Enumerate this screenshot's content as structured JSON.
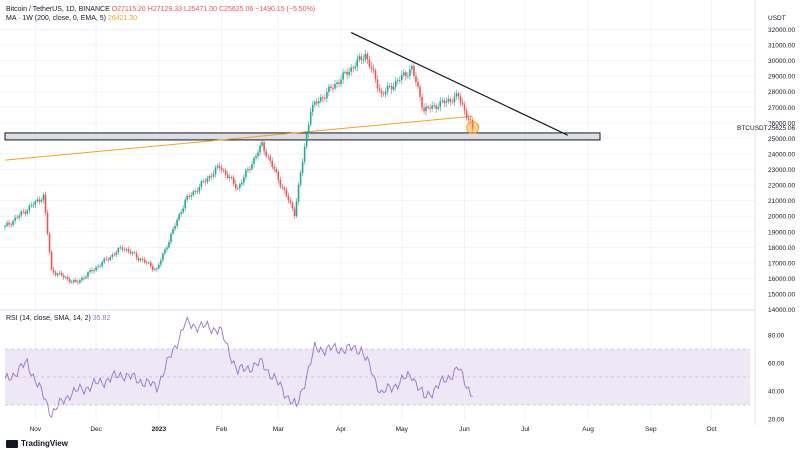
{
  "legend": {
    "symbol": "Bitcoin / TetherUS, 1D, BINANCE",
    "ohlc": "O27115.20  H27129.33  L25471.00  C25625.06  −1490.15 (−5.50%)",
    "ma_title": "MA · 1W (200, close, 0, EMA, 5)",
    "ma_value": "26421.30",
    "rsi_title": "RSI (14, close, SMA, 14, 2)",
    "rsi_value": "35.82"
  },
  "axis": {
    "currency": "USDT",
    "price_ticks": [
      "32000.00",
      "31000.00",
      "30000.00",
      "29000.00",
      "28000.00",
      "27000.00",
      "26000.00",
      "25000.00",
      "24000.00",
      "23000.00",
      "22000.00",
      "21000.00",
      "20000.00",
      "19000.00",
      "18000.00",
      "17000.00",
      "16000.00",
      "15000.00",
      "14000.00"
    ],
    "rsi_ticks": [
      "80.00",
      "60.00",
      "40.00",
      "20.00"
    ],
    "time_ticks": [
      "Nov",
      "Dec",
      "2023",
      "Feb",
      "Mar",
      "Apr",
      "May",
      "Jun",
      "Jul",
      "Aug",
      "Sep",
      "Oct"
    ],
    "symbol_tag": "BTCUSDT",
    "last_price": "25625.06"
  },
  "branding": {
    "logo_text": "TradingView"
  },
  "colors": {
    "up": "#26a69a",
    "down": "#ef5350",
    "ma": "#f7a21b",
    "rsi": "#9575cd",
    "rsi_band": "#ede7f6",
    "zone": "#d1d4dc"
  },
  "chart_data": [
    {
      "type": "candlestick",
      "title": "Bitcoin / TetherUS, 1D, BINANCE",
      "xlabel": "",
      "ylabel": "USDT",
      "ylim": [
        14000,
        32000
      ],
      "x_range": [
        "2022-10-17",
        "2023-10-20"
      ],
      "series": [
        {
          "name": "BTCUSDT",
          "key_points": [
            {
              "x": "2022-10-17",
              "y": 19300
            },
            {
              "x": "2022-11-05",
              "y": 21300
            },
            {
              "x": "2022-11-09",
              "y": 16500
            },
            {
              "x": "2022-11-21",
              "y": 15700
            },
            {
              "x": "2022-12-14",
              "y": 18000
            },
            {
              "x": "2022-12-31",
              "y": 16550
            },
            {
              "x": "2023-01-14",
              "y": 21000
            },
            {
              "x": "2023-01-31",
              "y": 23200
            },
            {
              "x": "2023-02-09",
              "y": 21800
            },
            {
              "x": "2023-02-21",
              "y": 24600
            },
            {
              "x": "2023-03-09",
              "y": 20200
            },
            {
              "x": "2023-03-17",
              "y": 26900
            },
            {
              "x": "2023-04-13",
              "y": 30400
            },
            {
              "x": "2023-04-21",
              "y": 27800
            },
            {
              "x": "2023-05-06",
              "y": 29500
            },
            {
              "x": "2023-05-12",
              "y": 26800
            },
            {
              "x": "2023-05-29",
              "y": 27700
            },
            {
              "x": "2023-06-05",
              "y": 25625
            }
          ]
        },
        {
          "name": "MA · 1W (200, close, 0, EMA, 5)",
          "key_points": [
            {
              "x": "2022-10-17",
              "y": 23600
            },
            {
              "x": "2023-06-05",
              "y": 26421
            }
          ]
        }
      ],
      "annotations": {
        "trendline": [
          {
            "x": "2023-04-06",
            "y": 31800
          },
          {
            "x": "2023-07-22",
            "y": 25200
          }
        ],
        "support_zone": [
          24900,
          25350
        ]
      }
    },
    {
      "type": "line",
      "title": "RSI (14, close, SMA, 14, 2)",
      "ylim": [
        15,
        90
      ],
      "bands": [
        30,
        50,
        70
      ],
      "series": [
        {
          "name": "RSI",
          "key_points": [
            {
              "x": "2022-10-17",
              "y": 47
            },
            {
              "x": "2022-10-28",
              "y": 60
            },
            {
              "x": "2022-11-09",
              "y": 24
            },
            {
              "x": "2022-11-18",
              "y": 38
            },
            {
              "x": "2022-12-14",
              "y": 52
            },
            {
              "x": "2022-12-31",
              "y": 43
            },
            {
              "x": "2023-01-14",
              "y": 88
            },
            {
              "x": "2023-01-31",
              "y": 84
            },
            {
              "x": "2023-02-09",
              "y": 54
            },
            {
              "x": "2023-02-21",
              "y": 60
            },
            {
              "x": "2023-03-10",
              "y": 28
            },
            {
              "x": "2023-03-19",
              "y": 70
            },
            {
              "x": "2023-04-11",
              "y": 70
            },
            {
              "x": "2023-04-21",
              "y": 38
            },
            {
              "x": "2023-05-06",
              "y": 52
            },
            {
              "x": "2023-05-12",
              "y": 35
            },
            {
              "x": "2023-05-29",
              "y": 56
            },
            {
              "x": "2023-06-05",
              "y": 36
            }
          ]
        }
      ]
    }
  ]
}
